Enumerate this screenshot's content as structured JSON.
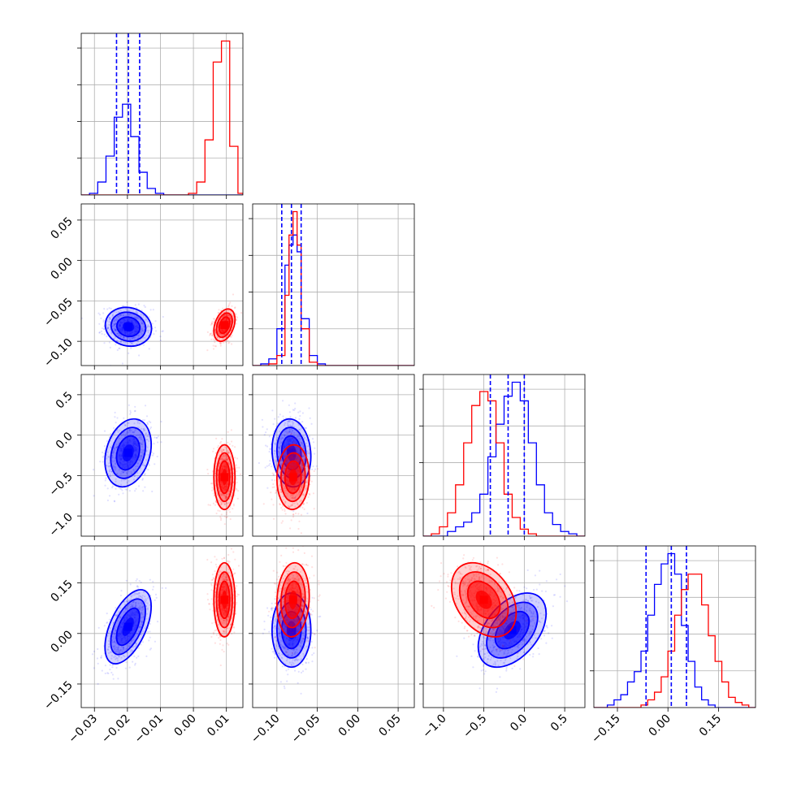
{
  "chart_data": {
    "type": "corner",
    "grid": true,
    "series": [
      {
        "color": "#0000ff"
      },
      {
        "color": "#ff0000"
      }
    ],
    "params": [
      {
        "range": [
          -0.034,
          0.015
        ],
        "ticks": [
          -0.03,
          -0.02,
          -0.01,
          0.0,
          0.01
        ],
        "tick_labels": [
          "−0.03",
          "−0.02",
          "−0.01",
          "0.00",
          "0.01"
        ]
      },
      {
        "range": [
          -0.13,
          0.07
        ],
        "ticks": [
          -0.1,
          -0.05,
          0.0,
          0.05
        ],
        "tick_labels": [
          "−0.10",
          "−0.05",
          "0.00",
          "0.05"
        ]
      },
      {
        "range": [
          -1.25,
          0.75
        ],
        "ticks": [
          -1.0,
          -0.5,
          0.0,
          0.5
        ],
        "tick_labels": [
          "−1.0",
          "−0.5",
          "0.0",
          "0.5"
        ]
      },
      {
        "range": [
          -0.22,
          0.26
        ],
        "ticks": [
          -0.15,
          0.0,
          0.15
        ],
        "tick_labels": [
          "−0.15",
          "0.00",
          "0.15"
        ]
      }
    ],
    "histograms": [
      {
        "param": 0,
        "bin_edges": [
          -0.034,
          -0.0315,
          -0.029,
          -0.0265,
          -0.024,
          -0.0215,
          -0.019,
          -0.0165,
          -0.014,
          -0.0115,
          -0.009,
          -0.0065,
          -0.004,
          -0.0015,
          0.001,
          0.0035,
          0.006,
          0.0085,
          0.011,
          0.0135,
          0.015
        ],
        "series_counts": [
          [
            0,
            1,
            8,
            24,
            48,
            56,
            36,
            14,
            4,
            1,
            0,
            0,
            0,
            0,
            0,
            0,
            0,
            0,
            0,
            0
          ],
          [
            0,
            0,
            0,
            0,
            0,
            0,
            0,
            0,
            0,
            0,
            0,
            0,
            0,
            1,
            8,
            34,
            82,
            95,
            30,
            1
          ]
        ],
        "quantiles_blue": [
          -0.0233,
          -0.0197,
          -0.0163
        ]
      },
      {
        "param": 1,
        "bin_edges": [
          -0.13,
          -0.12,
          -0.11,
          -0.1,
          -0.09,
          -0.085,
          -0.08,
          -0.075,
          -0.07,
          -0.06,
          -0.05,
          -0.04,
          -0.03,
          -0.02,
          -0.01,
          0.0,
          0.01,
          0.02,
          0.03,
          0.04,
          0.05,
          0.06,
          0.07
        ],
        "series_counts": [
          [
            0,
            1,
            4,
            22,
            60,
            72,
            78,
            68,
            28,
            6,
            1,
            0,
            0,
            0,
            0,
            0,
            0,
            0,
            0,
            0,
            0,
            0
          ],
          [
            0,
            0,
            1,
            6,
            42,
            78,
            92,
            72,
            22,
            2,
            0,
            0,
            0,
            0,
            0,
            0,
            0,
            0,
            0,
            0,
            0,
            0
          ]
        ],
        "quantiles_blue": [
          -0.094,
          -0.082,
          -0.07
        ]
      },
      {
        "param": 2,
        "bin_edges": [
          -1.25,
          -1.15,
          -1.05,
          -0.95,
          -0.85,
          -0.75,
          -0.65,
          -0.55,
          -0.45,
          -0.35,
          -0.25,
          -0.15,
          -0.05,
          0.05,
          0.15,
          0.25,
          0.35,
          0.45,
          0.55,
          0.65,
          0.75
        ],
        "series_counts": [
          [
            0,
            0,
            0,
            2,
            4,
            6,
            10,
            18,
            34,
            48,
            60,
            66,
            58,
            40,
            22,
            10,
            5,
            2,
            1,
            0
          ],
          [
            0,
            1,
            4,
            10,
            22,
            40,
            56,
            62,
            58,
            40,
            18,
            8,
            3,
            1,
            0,
            0,
            0,
            0,
            0,
            0
          ]
        ],
        "quantiles_blue": [
          -0.42,
          -0.2,
          0.0
        ]
      },
      {
        "param": 3,
        "bin_edges": [
          -0.22,
          -0.2,
          -0.18,
          -0.16,
          -0.14,
          -0.12,
          -0.1,
          -0.08,
          -0.06,
          -0.04,
          -0.02,
          0.0,
          0.02,
          0.04,
          0.06,
          0.08,
          0.1,
          0.12,
          0.14,
          0.16,
          0.18,
          0.2,
          0.22,
          0.24,
          0.26
        ],
        "series_counts": [
          [
            0,
            0,
            1,
            3,
            5,
            10,
            14,
            22,
            36,
            48,
            56,
            60,
            52,
            32,
            18,
            8,
            3,
            1,
            0,
            0,
            0,
            0,
            0,
            0
          ],
          [
            0,
            0,
            0,
            0,
            0,
            0,
            0,
            1,
            3,
            6,
            12,
            22,
            36,
            46,
            52,
            52,
            40,
            28,
            18,
            10,
            4,
            2,
            1,
            0
          ]
        ],
        "quantiles_blue": [
          -0.065,
          0.01,
          0.055
        ]
      }
    ],
    "scatter_2d": [
      {
        "x_param": 0,
        "y_param": 1,
        "clouds": [
          {
            "series": 0,
            "mean": [
              -0.0197,
              -0.082
            ],
            "sd": [
              0.0035,
              0.012
            ],
            "corr": -0.1
          },
          {
            "series": 1,
            "mean": [
              0.0094,
              -0.08
            ],
            "sd": [
              0.0016,
              0.01
            ],
            "corr": 0.35
          }
        ]
      },
      {
        "x_param": 0,
        "y_param": 2,
        "clouds": [
          {
            "series": 0,
            "mean": [
              -0.0198,
              -0.22
            ],
            "sd": [
              0.0035,
              0.21
            ],
            "corr": 0.25
          },
          {
            "series": 1,
            "mean": [
              0.0094,
              -0.52
            ],
            "sd": [
              0.0016,
              0.2
            ],
            "corr": 0.0
          }
        ]
      },
      {
        "x_param": 1,
        "y_param": 2,
        "clouds": [
          {
            "series": 0,
            "mean": [
              -0.082,
              -0.22
            ],
            "sd": [
              0.012,
              0.21
            ],
            "corr": -0.1
          },
          {
            "series": 1,
            "mean": [
              -0.08,
              -0.52
            ],
            "sd": [
              0.01,
              0.2
            ],
            "corr": 0.05
          }
        ]
      },
      {
        "x_param": 0,
        "y_param": 3,
        "clouds": [
          {
            "series": 0,
            "mean": [
              -0.0198,
              0.02
            ],
            "sd": [
              0.0035,
              0.055
            ],
            "corr": 0.55
          },
          {
            "series": 1,
            "mean": [
              0.0094,
              0.1
            ],
            "sd": [
              0.0016,
              0.055
            ],
            "corr": 0.0
          }
        ]
      },
      {
        "x_param": 1,
        "y_param": 3,
        "clouds": [
          {
            "series": 0,
            "mean": [
              -0.082,
              0.01
            ],
            "sd": [
              0.012,
              0.055
            ],
            "corr": 0.0
          },
          {
            "series": 1,
            "mean": [
              -0.08,
              0.1
            ],
            "sd": [
              0.01,
              0.055
            ],
            "corr": 0.1
          }
        ]
      },
      {
        "x_param": 2,
        "y_param": 3,
        "clouds": [
          {
            "series": 0,
            "mean": [
              -0.15,
              0.01
            ],
            "sd": [
              0.21,
              0.055
            ],
            "corr": 0.45
          },
          {
            "series": 1,
            "mean": [
              -0.5,
              0.1
            ],
            "sd": [
              0.2,
              0.055
            ],
            "corr": -0.35
          }
        ]
      }
    ]
  }
}
